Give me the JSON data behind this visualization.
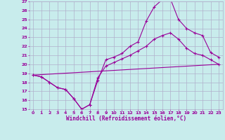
{
  "xlabel": "Windchill (Refroidissement éolien,°C)",
  "background_color": "#c8ecec",
  "grid_color": "#b0b0cc",
  "line_color": "#990099",
  "xlim": [
    -0.5,
    23.5
  ],
  "ylim": [
    15,
    27
  ],
  "xticks": [
    0,
    1,
    2,
    3,
    4,
    5,
    6,
    7,
    8,
    9,
    10,
    11,
    12,
    13,
    14,
    15,
    16,
    17,
    18,
    19,
    20,
    21,
    22,
    23
  ],
  "yticks": [
    15,
    16,
    17,
    18,
    19,
    20,
    21,
    22,
    23,
    24,
    25,
    26,
    27
  ],
  "line1_x": [
    0,
    1,
    2,
    3,
    4,
    5,
    6,
    7,
    8,
    9,
    10,
    11,
    12,
    13,
    14,
    15,
    16,
    17,
    18,
    19,
    20,
    21,
    22,
    23
  ],
  "line1_y": [
    18.8,
    18.6,
    18.0,
    17.4,
    17.2,
    16.2,
    15.0,
    15.5,
    18.2,
    20.5,
    20.8,
    21.2,
    22.0,
    22.5,
    24.8,
    26.4,
    27.2,
    27.3,
    25.0,
    24.0,
    23.5,
    23.2,
    21.3,
    20.8
  ],
  "line2_x": [
    0,
    1,
    2,
    3,
    4,
    5,
    6,
    7,
    8,
    9,
    10,
    11,
    12,
    13,
    14,
    15,
    16,
    17,
    18,
    19,
    20,
    21,
    22,
    23
  ],
  "line2_y": [
    18.8,
    18.6,
    18.0,
    17.4,
    17.2,
    16.2,
    15.0,
    15.5,
    18.5,
    19.8,
    20.2,
    20.6,
    21.0,
    21.5,
    22.0,
    22.8,
    23.2,
    23.5,
    22.8,
    21.8,
    21.2,
    21.0,
    20.5,
    20.0
  ],
  "line3_x": [
    0,
    23
  ],
  "line3_y": [
    18.8,
    20.0
  ]
}
